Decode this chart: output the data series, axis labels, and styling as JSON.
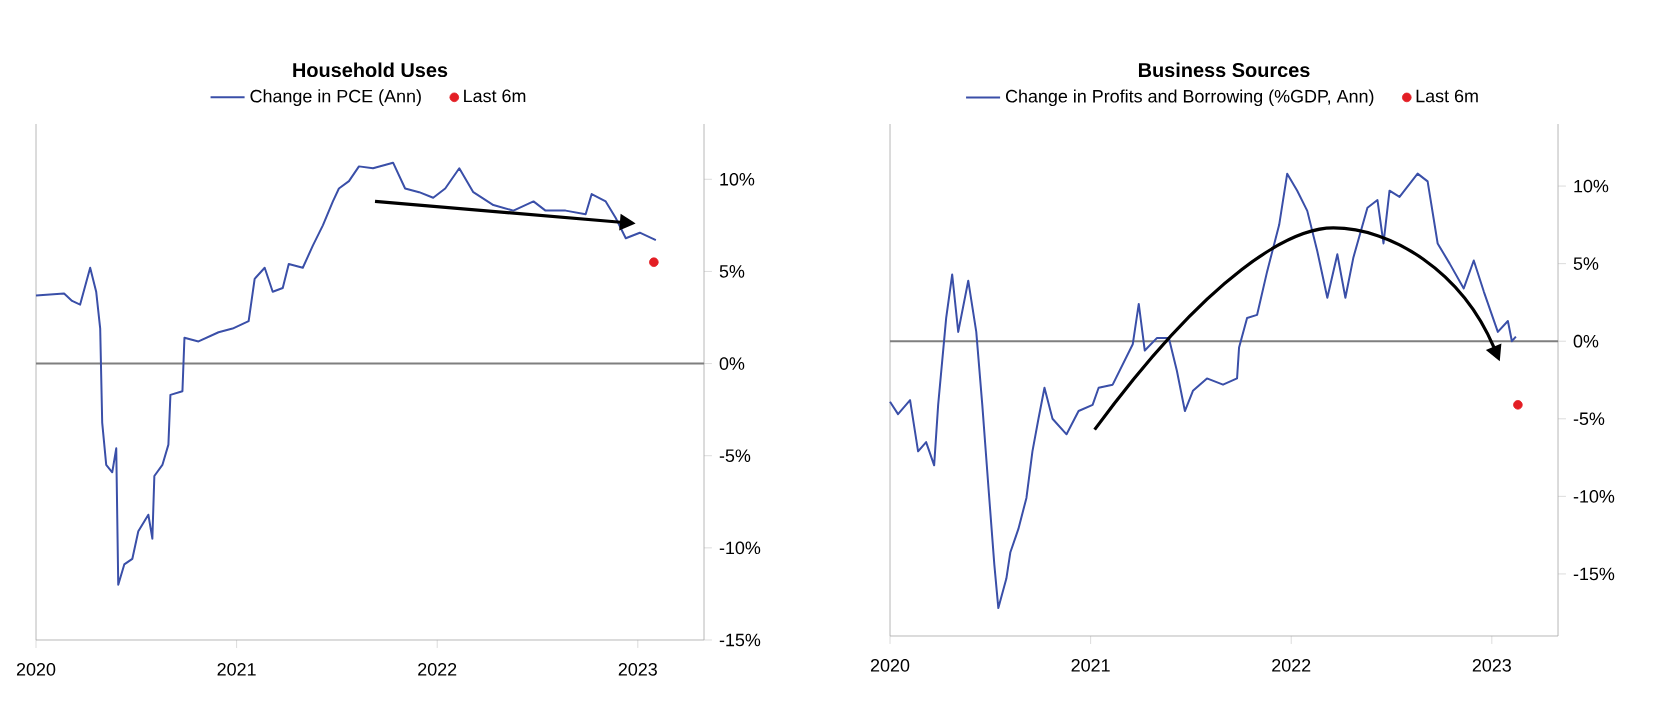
{
  "chart_data": [
    {
      "type": "line",
      "title": "Household Uses",
      "legend": "top",
      "xlim": [
        2020,
        2023.33
      ],
      "xticks": [
        2020,
        2021,
        2022,
        2023
      ],
      "ylim": [
        -15,
        13
      ],
      "yticks": [
        {
          "value": -15,
          "label": "-15%"
        },
        {
          "value": -10,
          "label": "-10%"
        },
        {
          "value": -5,
          "label": "-5%"
        },
        {
          "value": 0,
          "label": "0%"
        },
        {
          "value": 5,
          "label": "5%"
        },
        {
          "value": 10,
          "label": "10%"
        }
      ],
      "ref_lines": [
        {
          "axis": "y",
          "value": 0,
          "color": "#7f7f7f"
        }
      ],
      "series": [
        {
          "name": "Change in PCE (Ann)",
          "color": "#3a4fa8",
          "x": [
            2020.0,
            2020.14,
            2020.18,
            2020.22,
            2020.27,
            2020.3,
            2020.32,
            2020.33,
            2020.35,
            2020.38,
            2020.4,
            2020.41,
            2020.44,
            2020.48,
            2020.51,
            2020.56,
            2020.58,
            2020.59,
            2020.63,
            2020.66,
            2020.67,
            2020.73,
            2020.74,
            2020.81,
            2020.91,
            2020.98,
            2021.06,
            2021.09,
            2021.14,
            2021.18,
            2021.23,
            2021.26,
            2021.33,
            2021.38,
            2021.43,
            2021.48,
            2021.51,
            2021.56,
            2021.61,
            2021.68,
            2021.78,
            2021.84,
            2021.91,
            2021.98,
            2022.04,
            2022.11,
            2022.18,
            2022.28,
            2022.38,
            2022.48,
            2022.54,
            2022.64,
            2022.74,
            2022.77,
            2022.84,
            2022.89,
            2022.94,
            2023.01,
            2023.09
          ],
          "values": [
            3.7,
            3.8,
            3.4,
            3.2,
            5.2,
            3.9,
            1.9,
            -3.2,
            -5.5,
            -5.9,
            -4.6,
            -12.0,
            -10.9,
            -10.6,
            -9.1,
            -8.2,
            -9.5,
            -6.1,
            -5.5,
            -4.4,
            -1.7,
            -1.5,
            1.4,
            1.2,
            1.7,
            1.9,
            2.3,
            4.6,
            5.2,
            3.9,
            4.1,
            5.4,
            5.2,
            6.4,
            7.5,
            8.8,
            9.5,
            9.9,
            10.7,
            10.6,
            10.9,
            9.5,
            9.3,
            9.0,
            9.5,
            10.6,
            9.3,
            8.6,
            8.3,
            8.8,
            8.3,
            8.3,
            8.1,
            9.2,
            8.8,
            7.9,
            6.8,
            7.1,
            6.7
          ]
        },
        {
          "name": "Last 6m",
          "type": "scatter",
          "marker": "circle",
          "color": "#e31e24",
          "x": [
            2023.08
          ],
          "values": [
            5.5
          ]
        }
      ]
    },
    {
      "type": "line",
      "title": "Business Sources",
      "legend": "top",
      "xlim": [
        2020,
        2023.33
      ],
      "xticks": [
        2020,
        2021,
        2022,
        2023
      ],
      "ylim": [
        -19,
        14
      ],
      "yticks": [
        {
          "value": -15,
          "label": "-15%"
        },
        {
          "value": -10,
          "label": "-10%"
        },
        {
          "value": -5,
          "label": "-5%"
        },
        {
          "value": 0,
          "label": "0%"
        },
        {
          "value": 5,
          "label": "5%"
        },
        {
          "value": 10,
          "label": "10%"
        }
      ],
      "ref_lines": [
        {
          "axis": "y",
          "value": 0,
          "color": "#7f7f7f"
        }
      ],
      "series": [
        {
          "name": "Change in Profits and Borrowing (%GDP, Ann)",
          "color": "#3a4fa8",
          "x": [
            2020.0,
            2020.04,
            2020.1,
            2020.14,
            2020.18,
            2020.22,
            2020.24,
            2020.28,
            2020.31,
            2020.34,
            2020.39,
            2020.43,
            2020.46,
            2020.49,
            2020.52,
            2020.54,
            2020.58,
            2020.6,
            2020.64,
            2020.68,
            2020.71,
            2020.74,
            2020.77,
            2020.81,
            2020.88,
            2020.94,
            2021.01,
            2021.04,
            2021.11,
            2021.16,
            2021.21,
            2021.24,
            2021.27,
            2021.33,
            2021.39,
            2021.43,
            2021.47,
            2021.51,
            2021.58,
            2021.66,
            2021.73,
            2021.74,
            2021.78,
            2021.83,
            2021.88,
            2021.94,
            2021.98,
            2022.03,
            2022.08,
            2022.13,
            2022.18,
            2022.23,
            2022.27,
            2022.31,
            2022.38,
            2022.43,
            2022.46,
            2022.49,
            2022.54,
            2022.63,
            2022.68,
            2022.73,
            2022.79,
            2022.86,
            2022.91,
            2022.96,
            2023.03,
            2023.08,
            2023.1,
            2023.12
          ],
          "values": [
            -3.9,
            -4.7,
            -3.8,
            -7.1,
            -6.5,
            -8.0,
            -4.1,
            1.5,
            4.3,
            0.6,
            3.9,
            0.6,
            -4.1,
            -9.3,
            -14.4,
            -17.2,
            -15.3,
            -13.6,
            -12.1,
            -10.1,
            -7.1,
            -5.0,
            -3.0,
            -5.0,
            -6.0,
            -4.5,
            -4.1,
            -3.0,
            -2.8,
            -1.5,
            -0.2,
            2.4,
            -0.6,
            0.2,
            0.2,
            -1.9,
            -4.5,
            -3.2,
            -2.4,
            -2.8,
            -2.4,
            -0.4,
            1.5,
            1.7,
            4.5,
            7.5,
            10.8,
            9.7,
            8.4,
            5.8,
            2.8,
            5.6,
            2.8,
            5.4,
            8.6,
            9.1,
            6.3,
            9.7,
            9.3,
            10.8,
            10.3,
            6.3,
            5.0,
            3.4,
            5.2,
            3.2,
            0.6,
            1.3,
            0.0,
            0.3
          ]
        },
        {
          "name": "Last 6m",
          "type": "scatter",
          "marker": "circle",
          "color": "#e31e24",
          "x": [
            2023.13
          ],
          "values": [
            -4.1
          ]
        }
      ]
    }
  ]
}
